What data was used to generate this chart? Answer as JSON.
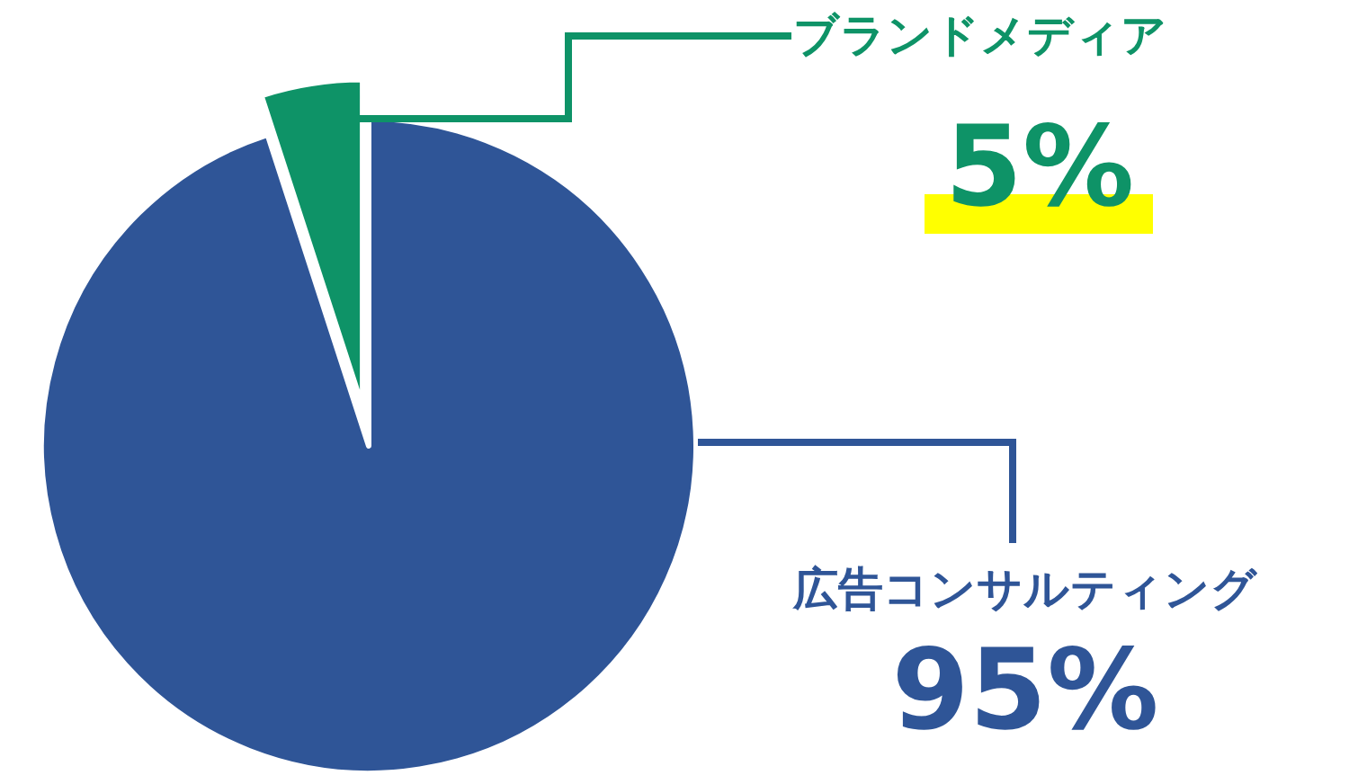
{
  "chart_data": {
    "type": "pie",
    "categories": [
      "広告コンサルティング",
      "ブランドメディア"
    ],
    "values": [
      95,
      5
    ],
    "colors": [
      "#2f5597",
      "#0e9367"
    ],
    "value_labels": [
      "95%",
      "5%"
    ]
  }
}
